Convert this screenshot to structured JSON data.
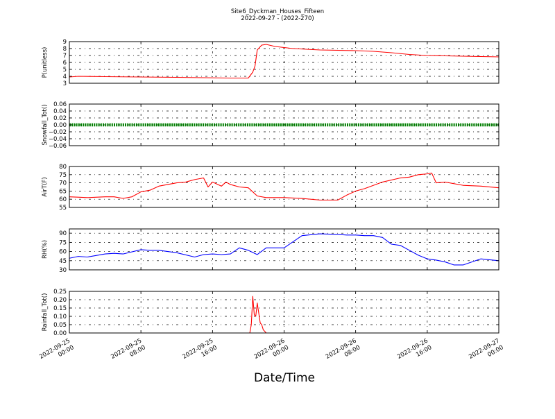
{
  "figure": {
    "title_line1": "Site6_Dyckman_Houses_Fifteen",
    "title_line2": "2022-09-27 - (2022-270)",
    "xlabel": "Date/Time"
  },
  "chart_data": [
    {
      "type": "line",
      "ylabel": "P(unitless)",
      "ylim": [
        3,
        9
      ],
      "yticks": [
        3,
        4,
        5,
        6,
        7,
        8,
        9
      ],
      "ytick_labels": [
        "3",
        "4",
        "5",
        "6",
        "7",
        "8",
        "9"
      ],
      "xlim": [
        "2022-09-25 00:00",
        "2022-09-27 00:00"
      ],
      "grid": true,
      "series": [
        {
          "color": "#ff0000",
          "x": [
            "2022-09-25 00:00",
            "2022-09-25 01:00",
            "2022-09-25 04:00",
            "2022-09-25 08:00",
            "2022-09-25 12:00",
            "2022-09-25 15:00",
            "2022-09-25 18:00",
            "2022-09-25 20:00",
            "2022-09-25 20:30",
            "2022-09-25 20:45",
            "2022-09-25 21:00",
            "2022-09-25 21:30",
            "2022-09-25 22:00",
            "2022-09-25 23:00",
            "2022-09-26 01:00",
            "2022-09-26 04:00",
            "2022-09-26 08:00",
            "2022-09-26 10:00",
            "2022-09-26 12:00",
            "2022-09-26 14:00",
            "2022-09-26 16:00",
            "2022-09-26 18:00",
            "2022-09-26 20:00",
            "2022-09-26 22:00",
            "2022-09-27 00:00"
          ],
          "y": [
            3.9,
            4.0,
            3.95,
            3.9,
            3.85,
            3.8,
            3.75,
            3.75,
            4.6,
            5.5,
            7.8,
            8.5,
            8.6,
            8.3,
            8.0,
            7.8,
            7.7,
            7.6,
            7.4,
            7.15,
            7.0,
            6.95,
            6.9,
            6.85,
            6.8
          ]
        }
      ]
    },
    {
      "type": "scatter",
      "ylabel": "Snowfall_Tot()",
      "ylim": [
        -0.06,
        0.06
      ],
      "yticks": [
        -0.06,
        -0.04,
        -0.02,
        0.0,
        0.02,
        0.04,
        0.06
      ],
      "ytick_labels": [
        "−0.06",
        "−0.04",
        "−0.02",
        "0.00",
        "0.02",
        "0.04",
        "0.06"
      ],
      "xlim": [
        "2022-09-25 00:00",
        "2022-09-27 00:00"
      ],
      "grid": true,
      "series": [
        {
          "color": "#008000",
          "x": [
            "2022-09-25 00:00",
            "2022-09-27 00:00"
          ],
          "y": [
            0.0,
            0.0
          ],
          "note_constant": true
        }
      ]
    },
    {
      "type": "line",
      "ylabel": "AirT(F)",
      "ylim": [
        55,
        80
      ],
      "yticks": [
        55,
        60,
        65,
        70,
        75,
        80
      ],
      "ytick_labels": [
        "55",
        "60",
        "65",
        "70",
        "75",
        "80"
      ],
      "xlim": [
        "2022-09-25 00:00",
        "2022-09-27 00:00"
      ],
      "grid": true,
      "series": [
        {
          "color": "#ff0000",
          "x": [
            "2022-09-25 00:00",
            "2022-09-25 02:00",
            "2022-09-25 04:00",
            "2022-09-25 05:00",
            "2022-09-25 06:00",
            "2022-09-25 07:00",
            "2022-09-25 08:00",
            "2022-09-25 09:00",
            "2022-09-25 10:00",
            "2022-09-25 12:00",
            "2022-09-25 13:00",
            "2022-09-25 14:00",
            "2022-09-25 15:00",
            "2022-09-25 15:30",
            "2022-09-25 16:00",
            "2022-09-25 17:00",
            "2022-09-25 17:30",
            "2022-09-25 18:00",
            "2022-09-25 19:00",
            "2022-09-25 20:00",
            "2022-09-25 21:00",
            "2022-09-25 22:00",
            "2022-09-26 00:00",
            "2022-09-26 02:00",
            "2022-09-26 04:00",
            "2022-09-26 06:00",
            "2022-09-26 07:00",
            "2022-09-26 08:00",
            "2022-09-26 09:00",
            "2022-09-26 11:00",
            "2022-09-26 13:00",
            "2022-09-26 14:00",
            "2022-09-26 15:00",
            "2022-09-26 16:00",
            "2022-09-26 16:30",
            "2022-09-26 17:00",
            "2022-09-26 18:00",
            "2022-09-26 20:00",
            "2022-09-26 22:00",
            "2022-09-27 00:00"
          ],
          "y": [
            61.5,
            61.0,
            61.5,
            61.5,
            60.5,
            61.5,
            64.5,
            65.5,
            68.0,
            70.0,
            70.5,
            72.0,
            73.0,
            67.5,
            70.5,
            68.0,
            70.5,
            69.0,
            67.5,
            67.0,
            62.0,
            61.0,
            61.0,
            60.5,
            59.5,
            59.5,
            62.5,
            65.0,
            66.5,
            70.5,
            73.0,
            73.5,
            75.0,
            75.5,
            76.0,
            70.0,
            70.5,
            68.5,
            68.0,
            67.0
          ]
        }
      ]
    },
    {
      "type": "line",
      "ylabel": "RH(%)",
      "ylim": [
        30,
        97
      ],
      "yticks": [
        30,
        45,
        60,
        75,
        90
      ],
      "ytick_labels": [
        "30",
        "45",
        "60",
        "75",
        "90"
      ],
      "xlim": [
        "2022-09-25 00:00",
        "2022-09-27 00:00"
      ],
      "grid": true,
      "series": [
        {
          "color": "#0000ff",
          "x": [
            "2022-09-25 00:00",
            "2022-09-25 01:00",
            "2022-09-25 02:00",
            "2022-09-25 04:00",
            "2022-09-25 05:00",
            "2022-09-25 06:00",
            "2022-09-25 08:00",
            "2022-09-25 09:00",
            "2022-09-25 10:00",
            "2022-09-25 12:00",
            "2022-09-25 14:00",
            "2022-09-25 15:00",
            "2022-09-25 16:00",
            "2022-09-25 17:00",
            "2022-09-25 18:00",
            "2022-09-25 19:00",
            "2022-09-25 20:00",
            "2022-09-25 21:00",
            "2022-09-25 22:00",
            "2022-09-26 00:00",
            "2022-09-26 02:00",
            "2022-09-26 04:00",
            "2022-09-26 06:00",
            "2022-09-26 07:00",
            "2022-09-26 08:00",
            "2022-09-26 09:00",
            "2022-09-26 10:00",
            "2022-09-26 11:00",
            "2022-09-26 12:00",
            "2022-09-26 13:00",
            "2022-09-26 14:00",
            "2022-09-26 15:00",
            "2022-09-26 16:00",
            "2022-09-26 17:00",
            "2022-09-26 18:00",
            "2022-09-26 19:00",
            "2022-09-26 20:00",
            "2022-09-26 22:00",
            "2022-09-27 00:00"
          ],
          "y": [
            49,
            52,
            51,
            56,
            57,
            56,
            63,
            62,
            62,
            58,
            51,
            55,
            56,
            55,
            56,
            66,
            62,
            55,
            66,
            66,
            86,
            89,
            88,
            87,
            87,
            86,
            86,
            83,
            72,
            70,
            62,
            54,
            48,
            46,
            43,
            38,
            38,
            48,
            45
          ]
        }
      ]
    },
    {
      "type": "line",
      "ylabel": "Rainfall_Tot()",
      "ylim": [
        0,
        0.25
      ],
      "yticks": [
        0.0,
        0.05,
        0.1,
        0.15,
        0.2,
        0.25
      ],
      "ytick_labels": [
        "0.00",
        "0.05",
        "0.10",
        "0.15",
        "0.20",
        "0.25"
      ],
      "xlim": [
        "2022-09-25 00:00",
        "2022-09-27 00:00"
      ],
      "grid": true,
      "series": [
        {
          "color": "#ff0000",
          "x": [
            "2022-09-25 00:00",
            "2022-09-25 20:10",
            "2022-09-25 20:20",
            "2022-09-25 20:30",
            "2022-09-25 20:40",
            "2022-09-25 20:50",
            "2022-09-25 21:00",
            "2022-09-25 21:10",
            "2022-09-25 21:20",
            "2022-09-25 21:30",
            "2022-09-25 21:40",
            "2022-09-25 21:50",
            "2022-09-25 22:00",
            "2022-09-25 22:20",
            "2022-09-27 00:00"
          ],
          "y": [
            0.0,
            0.0,
            0.05,
            0.22,
            0.11,
            0.1,
            0.18,
            0.12,
            0.06,
            0.05,
            0.02,
            0.01,
            0.0,
            0.0,
            0.0
          ]
        }
      ]
    }
  ],
  "x_ticks": [
    {
      "line1": "2022-09-25",
      "line2": "00:00"
    },
    {
      "line1": "2022-09-25",
      "line2": "08:00"
    },
    {
      "line1": "2022-09-25",
      "line2": "16:00"
    },
    {
      "line1": "2022-09-26",
      "line2": "00:00"
    },
    {
      "line1": "2022-09-26",
      "line2": "08:00"
    },
    {
      "line1": "2022-09-26",
      "line2": "16:00"
    },
    {
      "line1": "2022-09-27",
      "line2": "00:00"
    }
  ]
}
